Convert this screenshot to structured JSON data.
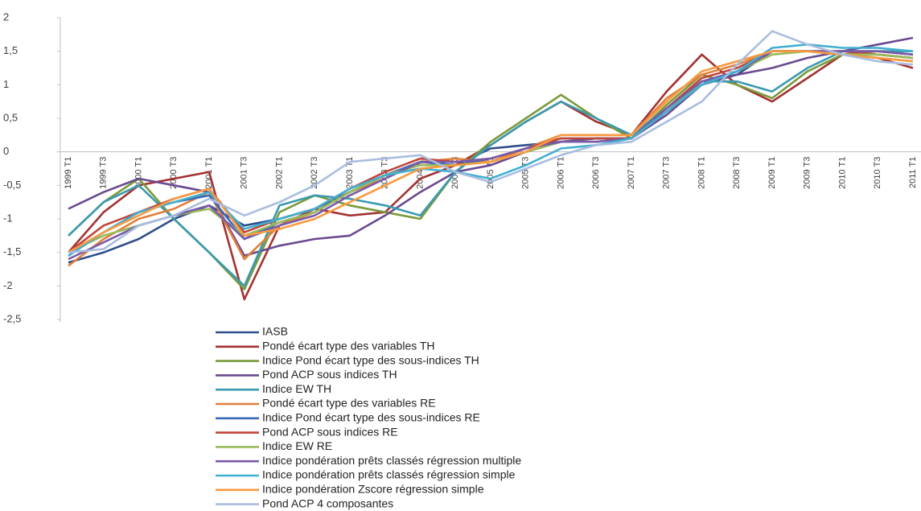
{
  "chart_data": {
    "type": "line",
    "categories": [
      "1999 T1",
      "1999 T3",
      "2000 T1",
      "2000 T3",
      "2001 T1",
      "2001 T3",
      "2002 T1",
      "2002 T3",
      "2003 T1",
      "2003 T3",
      "2004 T1",
      "2004 T3",
      "2005 T1",
      "2005 T3",
      "2006 T1",
      "2006 T3",
      "2007 T1",
      "2007 T3",
      "2008 T1",
      "2008 T3",
      "2009 T1",
      "2009 T3",
      "2010 T1",
      "2010 T3",
      "2011 T1"
    ],
    "ylim": [
      -2.5,
      2
    ],
    "yticks": [
      2,
      {
        "value": 1.5,
        "label": "1,5"
      },
      1,
      {
        "value": 0.5,
        "label": "0,5"
      },
      0,
      {
        "value": -0.5,
        "label": "-0,5"
      },
      -1,
      {
        "value": -1.5,
        "label": "-1,5"
      },
      -2,
      {
        "value": -2.5,
        "label": "-2,5"
      }
    ],
    "series": [
      {
        "name": "IASB",
        "color": "#2e4e8e",
        "values": [
          -1.65,
          -1.5,
          -1.3,
          -1.0,
          -0.8,
          -1.1,
          -1.0,
          -0.85,
          -0.6,
          -0.35,
          -0.15,
          -0.2,
          0.05,
          0.1,
          0.15,
          0.2,
          0.2,
          0.6,
          1.05,
          1.15,
          1.5,
          1.5,
          1.5,
          1.5,
          1.45
        ]
      },
      {
        "name": "Pondé écart type des variables TH",
        "color": "#a33232",
        "values": [
          -1.5,
          -0.9,
          -0.5,
          -0.4,
          -0.3,
          -2.2,
          -1.1,
          -0.85,
          -0.95,
          -0.9,
          -0.4,
          -0.2,
          0.1,
          0.45,
          0.75,
          0.45,
          0.25,
          0.9,
          1.45,
          1.0,
          0.75,
          1.1,
          1.45,
          1.4,
          1.25
        ]
      },
      {
        "name": "Indice Pond écart type des sous-indices TH",
        "color": "#7a9a3a",
        "values": [
          -1.25,
          -0.75,
          -0.4,
          -1.0,
          -1.5,
          -2.05,
          -0.9,
          -0.65,
          -0.8,
          -0.9,
          -1.0,
          -0.3,
          0.15,
          0.5,
          0.85,
          0.5,
          0.2,
          0.7,
          1.15,
          1.0,
          0.8,
          1.2,
          1.45,
          1.5,
          1.5
        ]
      },
      {
        "name": "Pond ACP  sous indices TH",
        "color": "#6a4a90",
        "values": [
          -0.85,
          -0.6,
          -0.4,
          -0.5,
          -0.6,
          -1.55,
          -1.4,
          -1.3,
          -1.25,
          -0.95,
          -0.6,
          -0.3,
          -0.2,
          0.0,
          0.15,
          0.2,
          0.2,
          0.55,
          1.0,
          1.15,
          1.25,
          1.4,
          1.5,
          1.6,
          1.7
        ]
      },
      {
        "name": "Indice EW TH",
        "color": "#3a9ab0",
        "values": [
          -1.25,
          -0.75,
          -0.5,
          -1.0,
          -1.5,
          -2.0,
          -0.8,
          -0.65,
          -0.7,
          -0.8,
          -0.95,
          -0.3,
          0.1,
          0.45,
          0.75,
          0.5,
          0.25,
          0.65,
          1.05,
          1.05,
          0.9,
          1.25,
          1.5,
          1.5,
          1.5
        ]
      },
      {
        "name": "Pondé écart type des variables RE",
        "color": "#e0803a",
        "values": [
          -1.7,
          -1.3,
          -1.0,
          -0.85,
          -0.6,
          -1.6,
          -1.1,
          -0.9,
          -0.6,
          -0.4,
          -0.15,
          -0.1,
          -0.15,
          0.05,
          0.25,
          0.25,
          0.25,
          0.8,
          1.15,
          1.3,
          1.5,
          1.5,
          1.45,
          1.4,
          1.35
        ]
      },
      {
        "name": "Indice Pond écart type des sous-indices RE",
        "color": "#3a6ab8",
        "values": [
          -1.55,
          -1.2,
          -0.9,
          -0.75,
          -0.65,
          -1.3,
          -1.05,
          -0.9,
          -0.6,
          -0.35,
          -0.15,
          -0.2,
          -0.1,
          0.05,
          0.2,
          0.2,
          0.2,
          0.6,
          1.0,
          1.2,
          1.5,
          1.5,
          1.45,
          1.45,
          1.4
        ]
      },
      {
        "name": "Pond ACP  sous indices RE",
        "color": "#c0453a",
        "values": [
          -1.5,
          -1.1,
          -0.9,
          -0.7,
          -0.55,
          -1.2,
          -1.0,
          -0.85,
          -0.55,
          -0.3,
          -0.1,
          -0.15,
          -0.1,
          0.05,
          0.2,
          0.2,
          0.2,
          0.65,
          1.1,
          1.25,
          1.5,
          1.5,
          1.5,
          1.45,
          1.4
        ]
      },
      {
        "name": "Indice EW RE",
        "color": "#9aba5a",
        "values": [
          -1.5,
          -1.25,
          -1.1,
          -0.95,
          -0.85,
          -1.25,
          -1.05,
          -0.9,
          -0.6,
          -0.35,
          -0.2,
          -0.2,
          -0.15,
          0.0,
          0.15,
          0.15,
          0.2,
          0.6,
          1.05,
          1.2,
          1.45,
          1.5,
          1.45,
          1.45,
          1.4
        ]
      },
      {
        "name": "Indice pondération prêts classés régression multiple",
        "color": "#7a5aa8",
        "values": [
          -1.6,
          -1.35,
          -1.1,
          -0.95,
          -0.8,
          -1.3,
          -1.1,
          -0.95,
          -0.65,
          -0.4,
          -0.15,
          -0.15,
          -0.1,
          0.05,
          0.15,
          0.15,
          0.2,
          0.65,
          1.05,
          1.2,
          1.5,
          1.5,
          1.5,
          1.5,
          1.45
        ]
      },
      {
        "name": "Indice pondération prêts classés régression simple",
        "color": "#40b0d0",
        "values": [
          -1.55,
          -1.2,
          -0.9,
          -0.75,
          -0.6,
          -1.15,
          -1.0,
          -0.85,
          -0.55,
          -0.35,
          -0.25,
          -0.3,
          -0.4,
          -0.2,
          0.05,
          0.1,
          0.2,
          0.6,
          1.0,
          1.2,
          1.55,
          1.6,
          1.55,
          1.55,
          1.5
        ]
      },
      {
        "name": "Indice pondération Zscore régression simple",
        "color": "#f89a40",
        "values": [
          -1.5,
          -1.2,
          -0.95,
          -0.7,
          -0.55,
          -1.25,
          -1.15,
          -1.0,
          -0.75,
          -0.5,
          -0.25,
          -0.2,
          -0.15,
          0.0,
          0.25,
          0.25,
          0.25,
          0.75,
          1.2,
          1.35,
          1.5,
          1.5,
          1.45,
          1.4,
          1.35
        ]
      },
      {
        "name": "Pond ACP 4 composantes",
        "color": "#a8bde0",
        "values": [
          -1.5,
          -1.45,
          -1.1,
          -0.95,
          -0.7,
          -0.95,
          -0.75,
          -0.5,
          -0.15,
          -0.1,
          -0.05,
          -0.3,
          -0.45,
          -0.25,
          -0.05,
          0.1,
          0.15,
          0.45,
          0.75,
          1.3,
          1.8,
          1.6,
          1.45,
          1.35,
          1.3
        ]
      }
    ]
  }
}
